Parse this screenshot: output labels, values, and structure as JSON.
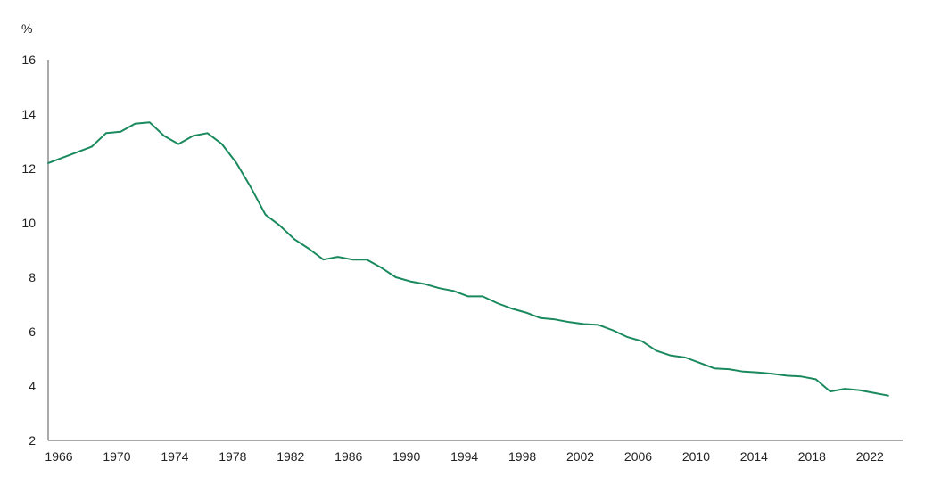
{
  "chart_data": {
    "type": "line",
    "ylabel": "%",
    "ylim": [
      2,
      16
    ],
    "y_ticks": [
      2,
      4,
      6,
      8,
      10,
      12,
      14,
      16
    ],
    "xlim": [
      1966,
      2025
    ],
    "x_ticks": [
      1966,
      1970,
      1974,
      1978,
      1982,
      1986,
      1990,
      1994,
      1998,
      2002,
      2006,
      2010,
      2014,
      2018,
      2022
    ],
    "grid": false,
    "legend": "none",
    "line_color": "#1a8a5e",
    "series": [
      {
        "x": [
          1966,
          1967,
          1968,
          1969,
          1970,
          1971,
          1972,
          1973,
          1974,
          1975,
          1976,
          1977,
          1978,
          1979,
          1980,
          1981,
          1982,
          1983,
          1984,
          1985,
          1986,
          1987,
          1988,
          1989,
          1990,
          1991,
          1992,
          1993,
          1994,
          1995,
          1996,
          1997,
          1998,
          1999,
          2000,
          2001,
          2002,
          2003,
          2004,
          2005,
          2006,
          2007,
          2008,
          2009,
          2010,
          2011,
          2012,
          2013,
          2014,
          2015,
          2016,
          2017,
          2018,
          2019,
          2020,
          2021,
          2022,
          2023,
          2024
        ],
        "values": [
          12.2,
          12.4,
          12.6,
          12.8,
          13.3,
          13.35,
          13.65,
          13.7,
          13.2,
          12.9,
          13.2,
          13.3,
          12.9,
          12.2,
          11.3,
          10.3,
          9.9,
          9.4,
          9.05,
          8.65,
          8.75,
          8.65,
          8.65,
          8.35,
          8.0,
          7.85,
          7.75,
          7.6,
          7.5,
          7.3,
          7.3,
          7.05,
          6.85,
          6.7,
          6.5,
          6.45,
          6.35,
          6.28,
          6.25,
          6.05,
          5.8,
          5.65,
          5.3,
          5.12,
          5.05,
          4.85,
          4.65,
          4.62,
          4.53,
          4.5,
          4.45,
          4.38,
          4.35,
          4.25,
          3.8,
          3.9,
          3.85,
          3.75,
          3.65
        ]
      }
    ]
  }
}
